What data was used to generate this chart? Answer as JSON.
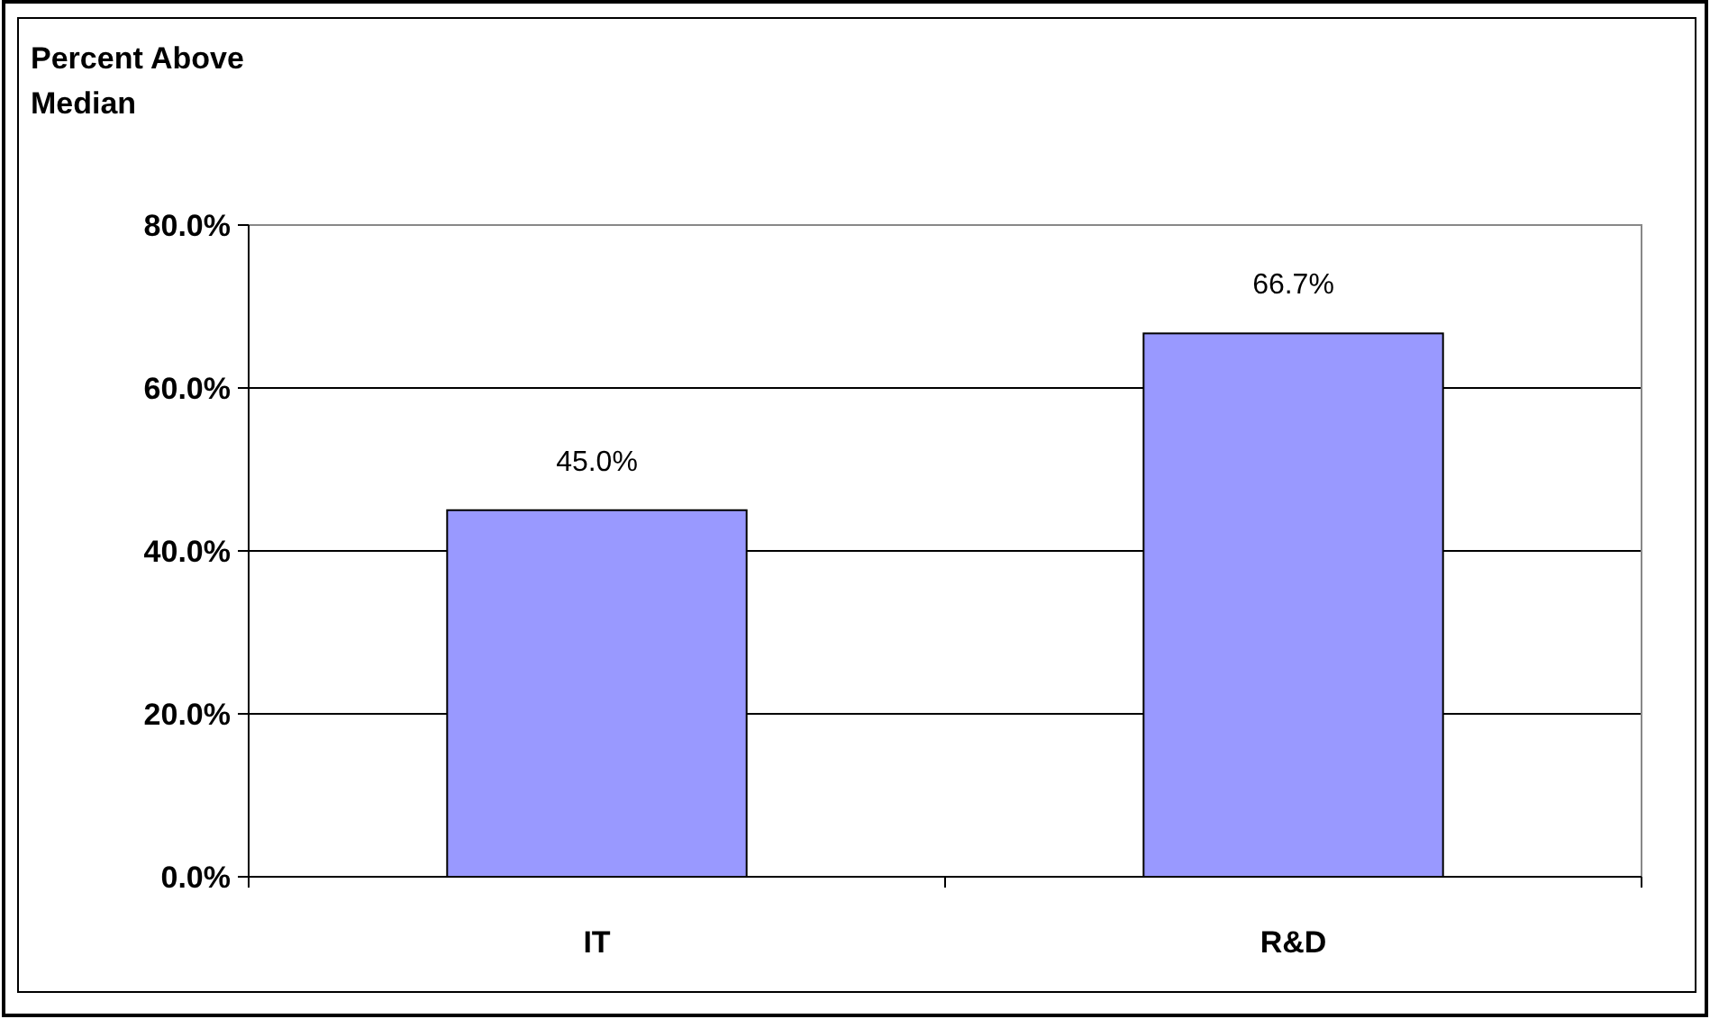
{
  "chart_data": {
    "type": "bar",
    "ylabel": "Percent Above Median",
    "categories": [
      "IT",
      "R&D"
    ],
    "values": [
      45.0,
      66.7
    ],
    "value_labels": [
      "45.0%",
      "66.7%"
    ],
    "color": "#9999ff",
    "ylim": [
      0,
      80
    ],
    "yticks": [
      {
        "value": 0,
        "label": "0.0%"
      },
      {
        "value": 20,
        "label": "20.0%"
      },
      {
        "value": 40,
        "label": "40.0%"
      },
      {
        "value": 60,
        "label": "60.0%"
      },
      {
        "value": 80,
        "label": "80.0%"
      }
    ],
    "grid": "y"
  }
}
